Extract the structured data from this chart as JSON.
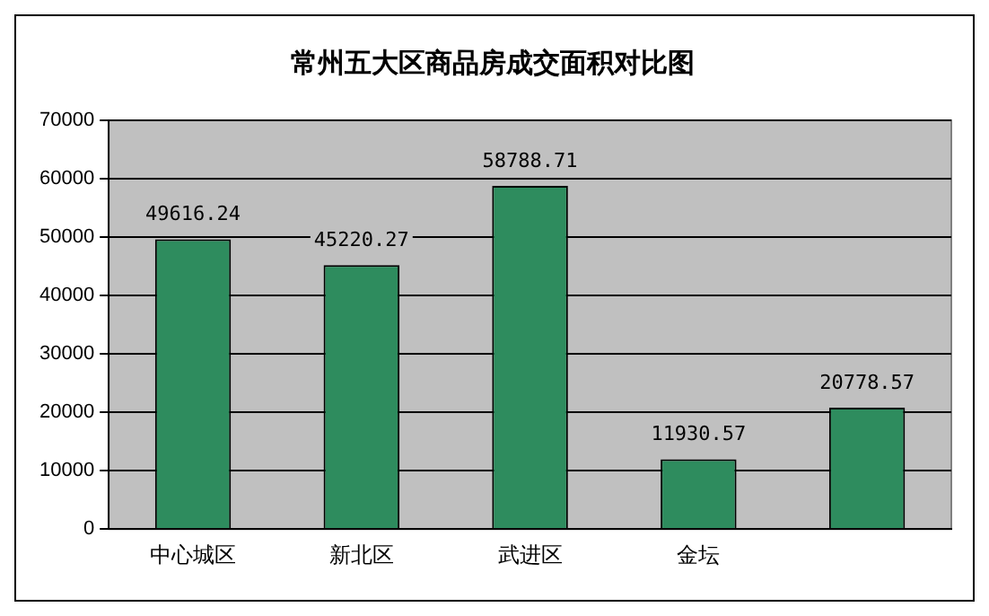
{
  "chart_data": {
    "type": "bar",
    "title": "常州五大区商品房成交面积对比图",
    "categories": [
      "中心城区",
      "新北区",
      "武进区",
      "金坛",
      null
    ],
    "values": [
      49616.24,
      45220.27,
      58788.71,
      11930.57,
      20778.57
    ],
    "color": "#2e8c5e",
    "ylim": [
      0,
      70000
    ],
    "yticks": [
      0,
      10000,
      20000,
      30000,
      40000,
      50000,
      60000,
      70000
    ],
    "grid": "y",
    "data_labels": true,
    "legend": false
  }
}
